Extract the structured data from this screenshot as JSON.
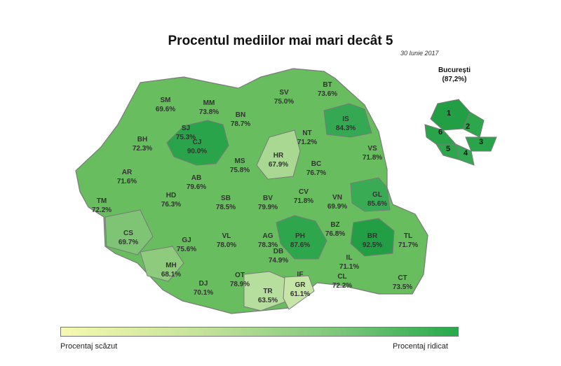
{
  "title": "Procentul mediilor mai mari decât 5",
  "date": "30 Iunie 2017",
  "bucuresti": {
    "name": "București",
    "value": "(87,2%)",
    "sectors": [
      "1",
      "2",
      "3",
      "4",
      "5",
      "6"
    ]
  },
  "legend": {
    "low": "Procentaj scăzut",
    "high": "Procentaj ridicat"
  },
  "counties": [
    {
      "code": "SM",
      "value": "69.6%"
    },
    {
      "code": "MM",
      "value": "73.8%"
    },
    {
      "code": "SV",
      "value": "75.0%"
    },
    {
      "code": "BT",
      "value": "73.6%"
    },
    {
      "code": "SJ",
      "value": "75.3%"
    },
    {
      "code": "BN",
      "value": "78.7%"
    },
    {
      "code": "IS",
      "value": "84.3%"
    },
    {
      "code": "BH",
      "value": "72.3%"
    },
    {
      "code": "CJ",
      "value": "90.0%"
    },
    {
      "code": "NT",
      "value": "71.2%"
    },
    {
      "code": "VS",
      "value": "71.8%"
    },
    {
      "code": "HR",
      "value": "67.9%"
    },
    {
      "code": "MS",
      "value": "75.8%"
    },
    {
      "code": "BC",
      "value": "76.7%"
    },
    {
      "code": "AR",
      "value": "71.6%"
    },
    {
      "code": "AB",
      "value": "79.6%"
    },
    {
      "code": "CV",
      "value": "71.8%"
    },
    {
      "code": "VN",
      "value": "69.9%"
    },
    {
      "code": "GL",
      "value": "85.6%"
    },
    {
      "code": "TM",
      "value": "72.2%"
    },
    {
      "code": "HD",
      "value": "76.3%"
    },
    {
      "code": "SB",
      "value": "78.5%"
    },
    {
      "code": "BV",
      "value": "79.9%"
    },
    {
      "code": "BZ",
      "value": "76.8%"
    },
    {
      "code": "CS",
      "value": "69.7%"
    },
    {
      "code": "GJ",
      "value": "75.6%"
    },
    {
      "code": "VL",
      "value": "78.0%"
    },
    {
      "code": "AG",
      "value": "78.3%"
    },
    {
      "code": "PH",
      "value": "87.6%"
    },
    {
      "code": "BR",
      "value": "92.5%"
    },
    {
      "code": "TL",
      "value": "71.7%"
    },
    {
      "code": "DB",
      "value": "74.9%"
    },
    {
      "code": "MH",
      "value": "68.1%"
    },
    {
      "code": "IL",
      "value": "71.1%"
    },
    {
      "code": "OT",
      "value": "78.9%"
    },
    {
      "code": "DJ",
      "value": "70.1%"
    },
    {
      "code": "TR",
      "value": "63.5%"
    },
    {
      "code": "GR",
      "value": "61.1%"
    },
    {
      "code": "IF",
      "value": ""
    },
    {
      "code": "CL",
      "value": "72.2%"
    },
    {
      "code": "CT",
      "value": "73.5%"
    }
  ],
  "colors": {
    "border": "#7a7a7a",
    "base": "#68bd5e",
    "dark": "#2aa44a",
    "light": "#a8d892",
    "lighter": "#c6e6a8"
  }
}
